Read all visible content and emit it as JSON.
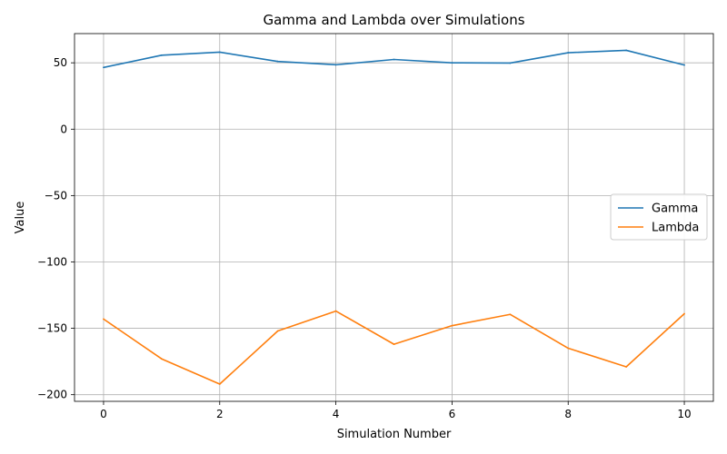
{
  "chart_data": {
    "type": "line",
    "title": "Gamma and Lambda over Simulations",
    "xlabel": "Simulation Number",
    "ylabel": "Value",
    "x": [
      0,
      1,
      2,
      3,
      4,
      5,
      6,
      7,
      8,
      9,
      10
    ],
    "xlim": [
      -0.5,
      10.5
    ],
    "ylim": [
      -205,
      72
    ],
    "xticks": [
      0,
      2,
      4,
      6,
      8,
      10
    ],
    "yticks": [
      50,
      0,
      -50,
      -100,
      -150,
      -200
    ],
    "ytick_labels": [
      "50",
      "0",
      "−50",
      "−100",
      "−150",
      "−200"
    ],
    "grid": true,
    "legend_position": "center-right",
    "series": [
      {
        "name": "Gamma",
        "color": "#1f77b4",
        "values": [
          46.5,
          55.7,
          58.0,
          51.0,
          48.5,
          52.5,
          50.0,
          49.8,
          57.6,
          59.4,
          48.3
        ]
      },
      {
        "name": "Lambda",
        "color": "#ff7f0e",
        "values": [
          -143.0,
          -173.0,
          -192.0,
          -152.0,
          -137.0,
          -162.0,
          -148.0,
          -139.5,
          -165.0,
          -179.0,
          -139.0
        ]
      }
    ]
  }
}
